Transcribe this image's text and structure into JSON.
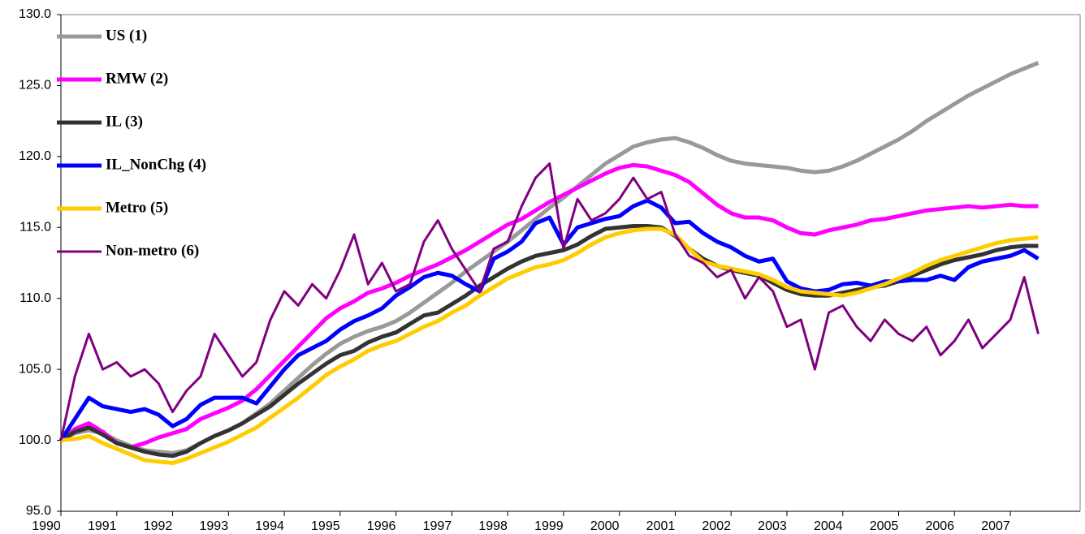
{
  "chart_data": {
    "type": "line",
    "x": [
      1990,
      1990.25,
      1990.5,
      1990.75,
      1991,
      1991.25,
      1991.5,
      1991.75,
      1992,
      1992.25,
      1992.5,
      1992.75,
      1993,
      1993.25,
      1993.5,
      1993.75,
      1994,
      1994.25,
      1994.5,
      1994.75,
      1995,
      1995.25,
      1995.5,
      1995.75,
      1996,
      1996.25,
      1996.5,
      1996.75,
      1997,
      1997.25,
      1997.5,
      1997.75,
      1998,
      1998.25,
      1998.5,
      1998.75,
      1999,
      1999.25,
      1999.5,
      1999.75,
      2000,
      2000.25,
      2000.5,
      2000.75,
      2001,
      2001.25,
      2001.5,
      2001.75,
      2002,
      2002.25,
      2002.5,
      2002.75,
      2003,
      2003.25,
      2003.5,
      2003.75,
      2004,
      2004.25,
      2004.5,
      2004.75,
      2005,
      2005.25,
      2005.5,
      2005.75,
      2006,
      2006.25,
      2006.5,
      2006.75,
      2007,
      2007.25,
      2007.5
    ],
    "xlim": [
      1990,
      2008.25
    ],
    "xticks": [
      1990,
      1991,
      1992,
      1993,
      1994,
      1995,
      1996,
      1997,
      1998,
      1999,
      2000,
      2001,
      2002,
      2003,
      2004,
      2005,
      2006,
      2007
    ],
    "ylim": [
      95,
      130
    ],
    "yticks": [
      {
        "value": 95,
        "label": "95.0"
      },
      {
        "value": 100,
        "label": "100.0"
      },
      {
        "value": 105,
        "label": "105.0"
      },
      {
        "value": 110,
        "label": "110.0"
      },
      {
        "value": 115,
        "label": "115.0"
      },
      {
        "value": 120,
        "label": "120.0"
      },
      {
        "value": 125,
        "label": "125.0"
      },
      {
        "value": 130,
        "label": "130.0"
      }
    ],
    "legend": "top-left",
    "series": [
      {
        "name": "US (1)",
        "color": "#999999",
        "values": [
          100,
          100.5,
          100.7,
          100.5,
          100,
          99.6,
          99.3,
          99.2,
          99.1,
          99.3,
          99.8,
          100.3,
          100.7,
          101.2,
          101.9,
          102.6,
          103.5,
          104.4,
          105.3,
          106.1,
          106.8,
          107.3,
          107.7,
          108.0,
          108.4,
          109.0,
          109.7,
          110.4,
          111.1,
          111.9,
          112.6,
          113.3,
          114.0,
          114.8,
          115.6,
          116.4,
          117.1,
          117.9,
          118.7,
          119.5,
          120.1,
          120.7,
          121.0,
          121.2,
          121.3,
          121.0,
          120.6,
          120.1,
          119.7,
          119.5,
          119.4,
          119.3,
          119.2,
          119.0,
          118.9,
          119.0,
          119.3,
          119.7,
          120.2,
          120.7,
          121.2,
          121.8,
          122.5,
          123.1,
          123.7,
          124.3,
          124.8,
          125.3,
          125.8,
          126.2,
          126.6
        ]
      },
      {
        "name": "RMW (2)",
        "color": "#ff00ff",
        "values": [
          100,
          100.8,
          101.2,
          100.6,
          99.8,
          99.5,
          99.8,
          100.2,
          100.5,
          100.8,
          101.5,
          101.9,
          102.3,
          102.8,
          103.6,
          104.6,
          105.6,
          106.6,
          107.6,
          108.6,
          109.3,
          109.8,
          110.4,
          110.7,
          111.1,
          111.6,
          112.0,
          112.4,
          112.9,
          113.4,
          114.0,
          114.6,
          115.2,
          115.6,
          116.2,
          116.8,
          117.3,
          117.8,
          118.3,
          118.8,
          119.2,
          119.4,
          119.3,
          119.0,
          118.7,
          118.2,
          117.4,
          116.6,
          116.0,
          115.7,
          115.7,
          115.5,
          115.0,
          114.6,
          114.5,
          114.8,
          115.0,
          115.2,
          115.5,
          115.6,
          115.8,
          116.0,
          116.2,
          116.3,
          116.4,
          116.5,
          116.4,
          116.5,
          116.6,
          116.5,
          116.5
        ]
      },
      {
        "name": "IL (3)",
        "color": "#333333",
        "values": [
          100,
          100.6,
          100.9,
          100.4,
          99.8,
          99.5,
          99.2,
          99.0,
          98.9,
          99.2,
          99.8,
          100.3,
          100.7,
          101.2,
          101.8,
          102.4,
          103.2,
          104.0,
          104.7,
          105.4,
          106.0,
          106.3,
          106.9,
          107.3,
          107.6,
          108.2,
          108.8,
          109.0,
          109.6,
          110.2,
          110.9,
          111.5,
          112.1,
          112.6,
          113.0,
          113.2,
          113.4,
          113.8,
          114.4,
          114.9,
          115.0,
          115.1,
          115.1,
          115.0,
          114.4,
          113.5,
          112.8,
          112.3,
          112.0,
          111.8,
          111.6,
          111.1,
          110.6,
          110.3,
          110.2,
          110.2,
          110.4,
          110.6,
          110.8,
          110.9,
          111.2,
          111.6,
          112.0,
          112.4,
          112.7,
          112.9,
          113.1,
          113.4,
          113.6,
          113.7,
          113.7
        ]
      },
      {
        "name": "IL_NonChg (4)",
        "color": "#0000ff",
        "values": [
          100,
          101.5,
          103.0,
          102.4,
          102.2,
          102.0,
          102.2,
          101.8,
          101.0,
          101.5,
          102.5,
          103.0,
          103.0,
          103.0,
          102.6,
          103.8,
          105.0,
          106.0,
          106.5,
          107.0,
          107.8,
          108.4,
          108.8,
          109.3,
          110.2,
          110.8,
          111.5,
          111.8,
          111.6,
          111.0,
          110.5,
          112.8,
          113.3,
          114.0,
          115.3,
          115.7,
          113.8,
          115.0,
          115.3,
          115.6,
          115.8,
          116.5,
          116.9,
          116.4,
          115.3,
          115.4,
          114.6,
          114.0,
          113.6,
          113.0,
          112.6,
          112.8,
          111.2,
          110.7,
          110.5,
          110.6,
          111.0,
          111.1,
          110.9,
          111.2,
          111.2,
          111.3,
          111.3,
          111.6,
          111.3,
          112.2,
          112.6,
          112.8,
          113.0,
          113.4,
          112.8
        ]
      },
      {
        "name": "Metro (5)",
        "color": "#ffcc00",
        "values": [
          100,
          100.1,
          100.3,
          99.8,
          99.4,
          99.0,
          98.6,
          98.5,
          98.4,
          98.7,
          99.1,
          99.5,
          99.9,
          100.4,
          100.9,
          101.6,
          102.3,
          103.0,
          103.8,
          104.6,
          105.2,
          105.7,
          106.3,
          106.7,
          107.0,
          107.5,
          108.0,
          108.4,
          109.0,
          109.5,
          110.2,
          110.8,
          111.4,
          111.8,
          112.2,
          112.4,
          112.7,
          113.2,
          113.8,
          114.3,
          114.6,
          114.8,
          114.9,
          114.9,
          114.5,
          113.5,
          112.6,
          112.3,
          112.1,
          111.9,
          111.7,
          111.3,
          110.8,
          110.5,
          110.4,
          110.3,
          110.2,
          110.4,
          110.7,
          111.0,
          111.4,
          111.8,
          112.3,
          112.7,
          113.0,
          113.3,
          113.6,
          113.9,
          114.1,
          114.2,
          114.3
        ]
      },
      {
        "name": "Non-metro (6)",
        "color": "#800080",
        "values": [
          100,
          104.5,
          107.5,
          105.0,
          105.5,
          104.5,
          105.0,
          104.0,
          102.0,
          103.5,
          104.5,
          107.5,
          106.0,
          104.5,
          105.5,
          108.5,
          110.5,
          109.5,
          111.0,
          110.0,
          112.0,
          114.5,
          111.0,
          112.5,
          110.5,
          111.0,
          114.0,
          115.5,
          113.5,
          112.0,
          110.5,
          113.5,
          114.0,
          116.5,
          118.5,
          119.5,
          113.5,
          117.0,
          115.5,
          116.0,
          117.0,
          118.5,
          117.0,
          117.5,
          114.5,
          113.0,
          112.5,
          111.5,
          112.0,
          110.0,
          111.5,
          110.5,
          108.0,
          108.5,
          105.0,
          109.0,
          109.5,
          108.0,
          107.0,
          108.5,
          107.5,
          107.0,
          108.0,
          106.0,
          107.0,
          108.5,
          106.5,
          107.5,
          108.5,
          111.5,
          107.5
        ]
      }
    ]
  }
}
